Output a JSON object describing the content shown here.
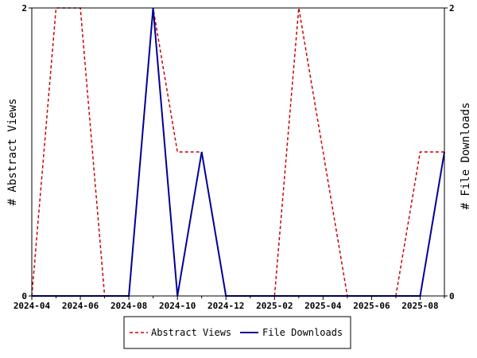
{
  "chart_data": {
    "type": "line",
    "x": [
      "2024-04",
      "2024-05",
      "2024-06",
      "2024-07",
      "2024-08",
      "2024-09",
      "2024-10",
      "2024-11",
      "2024-12",
      "2025-01",
      "2025-02",
      "2025-03",
      "2025-04",
      "2025-05",
      "2025-06",
      "2025-07",
      "2025-08",
      "2025-09"
    ],
    "x_tick_labels": [
      "2024-04",
      "2024-06",
      "2024-08",
      "2024-10",
      "2024-12",
      "2025-02",
      "2025-04",
      "2025-06",
      "2025-08"
    ],
    "series": [
      {
        "name": "Abstract Views",
        "axis": "left",
        "color": "#cc0000",
        "dash": "dashed",
        "values": [
          0,
          2,
          2,
          0,
          0,
          2,
          1,
          1,
          0,
          0,
          0,
          2,
          1,
          0,
          0,
          0,
          1,
          1
        ]
      },
      {
        "name": "File Downloads",
        "axis": "right",
        "color": "#000099",
        "dash": "solid",
        "values": [
          0,
          0,
          0,
          0,
          0,
          2,
          0,
          1,
          0,
          0,
          0,
          0,
          0,
          0,
          0,
          0,
          0,
          1
        ]
      }
    ],
    "ylabel": "# Abstract Views",
    "y2label": "# File Downloads",
    "ylim": [
      0,
      2
    ],
    "y2lim": [
      0,
      2
    ],
    "y_tick_labels": [
      "0",
      "2"
    ],
    "y2_tick_labels": [
      "0",
      "2"
    ],
    "grid": false,
    "legend_position": "bottom-center"
  }
}
